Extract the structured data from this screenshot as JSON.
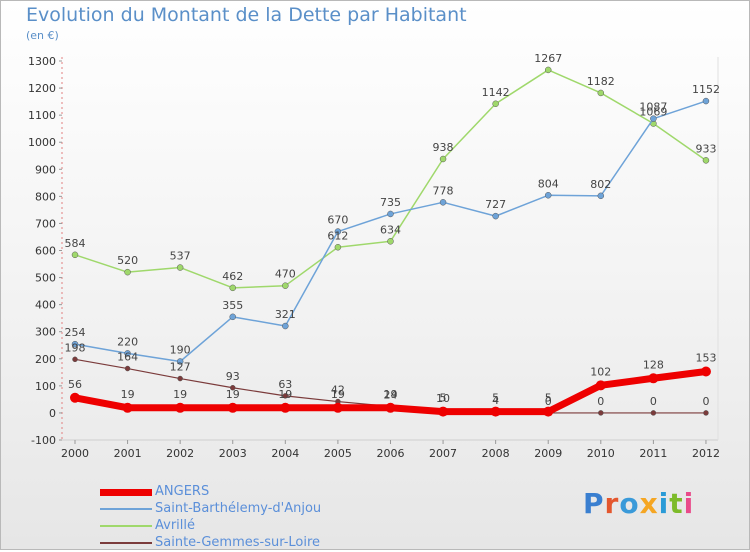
{
  "header": {
    "title": "Evolution du Montant de la Dette par Habitant",
    "unit": "(en €)"
  },
  "logo": {
    "text": "Proxiti",
    "colors": [
      "#3a7fd0",
      "#e4572e",
      "#3a9ad9",
      "#f5a623",
      "#2a9bd7",
      "#7dbb2a",
      "#e94b8a"
    ]
  },
  "chart_data": {
    "type": "line",
    "title": "Evolution du Montant de la Dette par Habitant",
    "subtitle": "(en €)",
    "xlabel": "",
    "ylabel": "",
    "x": [
      "2000",
      "2001",
      "2002",
      "2003",
      "2004",
      "2005",
      "2006",
      "2007",
      "2008",
      "2009",
      "2010",
      "2011",
      "2012"
    ],
    "ylim": [
      -100,
      1300
    ],
    "yticks": [
      -100,
      0,
      100,
      200,
      300,
      400,
      500,
      600,
      700,
      800,
      900,
      1000,
      1100,
      1200,
      1300
    ],
    "grid": false,
    "legend": "bottom-left",
    "series": [
      {
        "name": "ANGERS",
        "color": "#ee0000",
        "values": [
          56,
          19,
          19,
          19,
          19,
          19,
          19,
          5,
          5,
          5,
          102,
          128,
          153
        ]
      },
      {
        "name": "Saint-Barthélemy-d'Anjou",
        "color": "#6ea3d8",
        "values": [
          254,
          220,
          190,
          355,
          321,
          670,
          735,
          778,
          727,
          804,
          802,
          1087,
          1152
        ]
      },
      {
        "name": "Avrillé",
        "color": "#9fd86b",
        "values": [
          584,
          520,
          537,
          462,
          470,
          612,
          634,
          938,
          1142,
          1267,
          1182,
          1069,
          933
        ]
      },
      {
        "name": "Sainte-Gemmes-sur-Loire",
        "color": "#7b3b3b",
        "values": [
          198,
          164,
          127,
          93,
          63,
          42,
          24,
          10,
          4,
          0,
          0,
          0,
          0
        ]
      }
    ]
  }
}
